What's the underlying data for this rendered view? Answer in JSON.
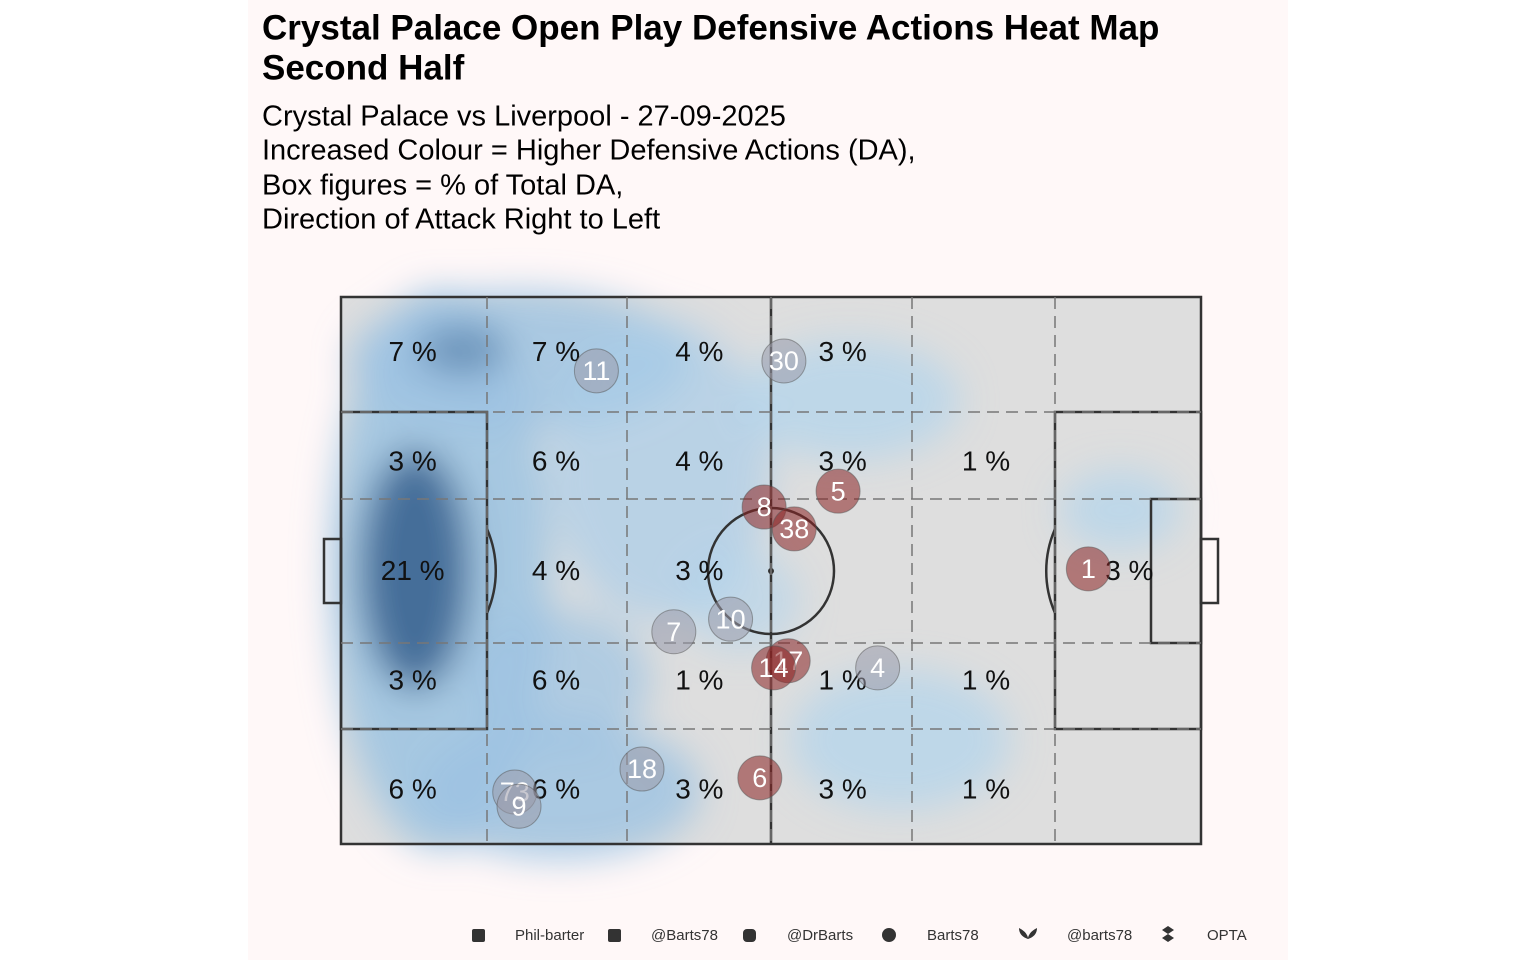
{
  "chart_data": {
    "type": "pitch-heatmap",
    "title": [
      "Crystal Palace Open Play Defensive Actions Heat Map",
      "Second Half"
    ],
    "subtitle": [
      "Crystal Palace vs Liverpool - 27-09-2025",
      "Increased Colour = Higher Defensive Actions (DA),",
      "Box figures = % of Total DA,",
      "Direction of Attack Right to Left"
    ],
    "xlim": [
      0,
      100
    ],
    "ylim": [
      0,
      100
    ],
    "zones": {
      "values": [
        [
          7,
          7,
          4,
          3,
          null,
          null
        ],
        [
          3,
          6,
          4,
          3,
          1,
          null
        ],
        [
          21,
          4,
          3,
          null,
          null,
          3
        ],
        [
          3,
          6,
          1,
          1,
          1,
          null
        ],
        [
          6,
          6,
          3,
          3,
          1,
          null
        ]
      ],
      "value_labels": [
        [
          "7 %",
          "7 %",
          "4 %",
          "3 %",
          null,
          null
        ],
        [
          "3 %",
          "6 %",
          "4 %",
          "3 %",
          "1 %",
          null
        ],
        [
          "21 %",
          "4 %",
          "3 %",
          null,
          null,
          "3 %"
        ],
        [
          "3 %",
          "6 %",
          "1 %",
          "1 %",
          "1 %",
          null
        ],
        [
          "6 %",
          "6 %",
          "3 %",
          "3 %",
          "1 %",
          null
        ]
      ]
    },
    "players": [
      {
        "label": "11",
        "x": 29.7,
        "y": 13.5,
        "color": "#9a9aaa"
      },
      {
        "label": "30",
        "x": 51.5,
        "y": 11.7,
        "color": "#9a9aaa"
      },
      {
        "label": "8",
        "x": 49.2,
        "y": 38.4,
        "color": "#8b2323"
      },
      {
        "label": "5",
        "x": 57.8,
        "y": 35.5,
        "color": "#8b2323"
      },
      {
        "label": "38",
        "x": 52.7,
        "y": 42.4,
        "color": "#8b2323"
      },
      {
        "label": "1",
        "x": 86.9,
        "y": 49.7,
        "color": "#8b2323"
      },
      {
        "label": "7",
        "x": 38.7,
        "y": 61.2,
        "color": "#9a9aaa"
      },
      {
        "label": "10",
        "x": 45.3,
        "y": 58.9,
        "color": "#9a9aaa"
      },
      {
        "label": "17",
        "x": 52.0,
        "y": 66.5,
        "color": "#8b2323"
      },
      {
        "label": "14",
        "x": 50.3,
        "y": 67.8,
        "color": "#8b2323"
      },
      {
        "label": "4",
        "x": 62.4,
        "y": 67.8,
        "color": "#9a9aaa"
      },
      {
        "label": "18",
        "x": 35.0,
        "y": 86.3,
        "color": "#9a9aaa"
      },
      {
        "label": "6",
        "x": 48.7,
        "y": 87.9,
        "color": "#8b2323"
      },
      {
        "label": "73",
        "x": 20.2,
        "y": 90.5,
        "color": "#9a9aaa"
      },
      {
        "label": "9",
        "x": 20.7,
        "y": 93.1,
        "color": "#9a9aaa"
      }
    ],
    "footer": [
      "Phil-barter",
      "@Barts78",
      "@DrBarts",
      "Barts78",
      "@barts78",
      "OPTA"
    ]
  }
}
